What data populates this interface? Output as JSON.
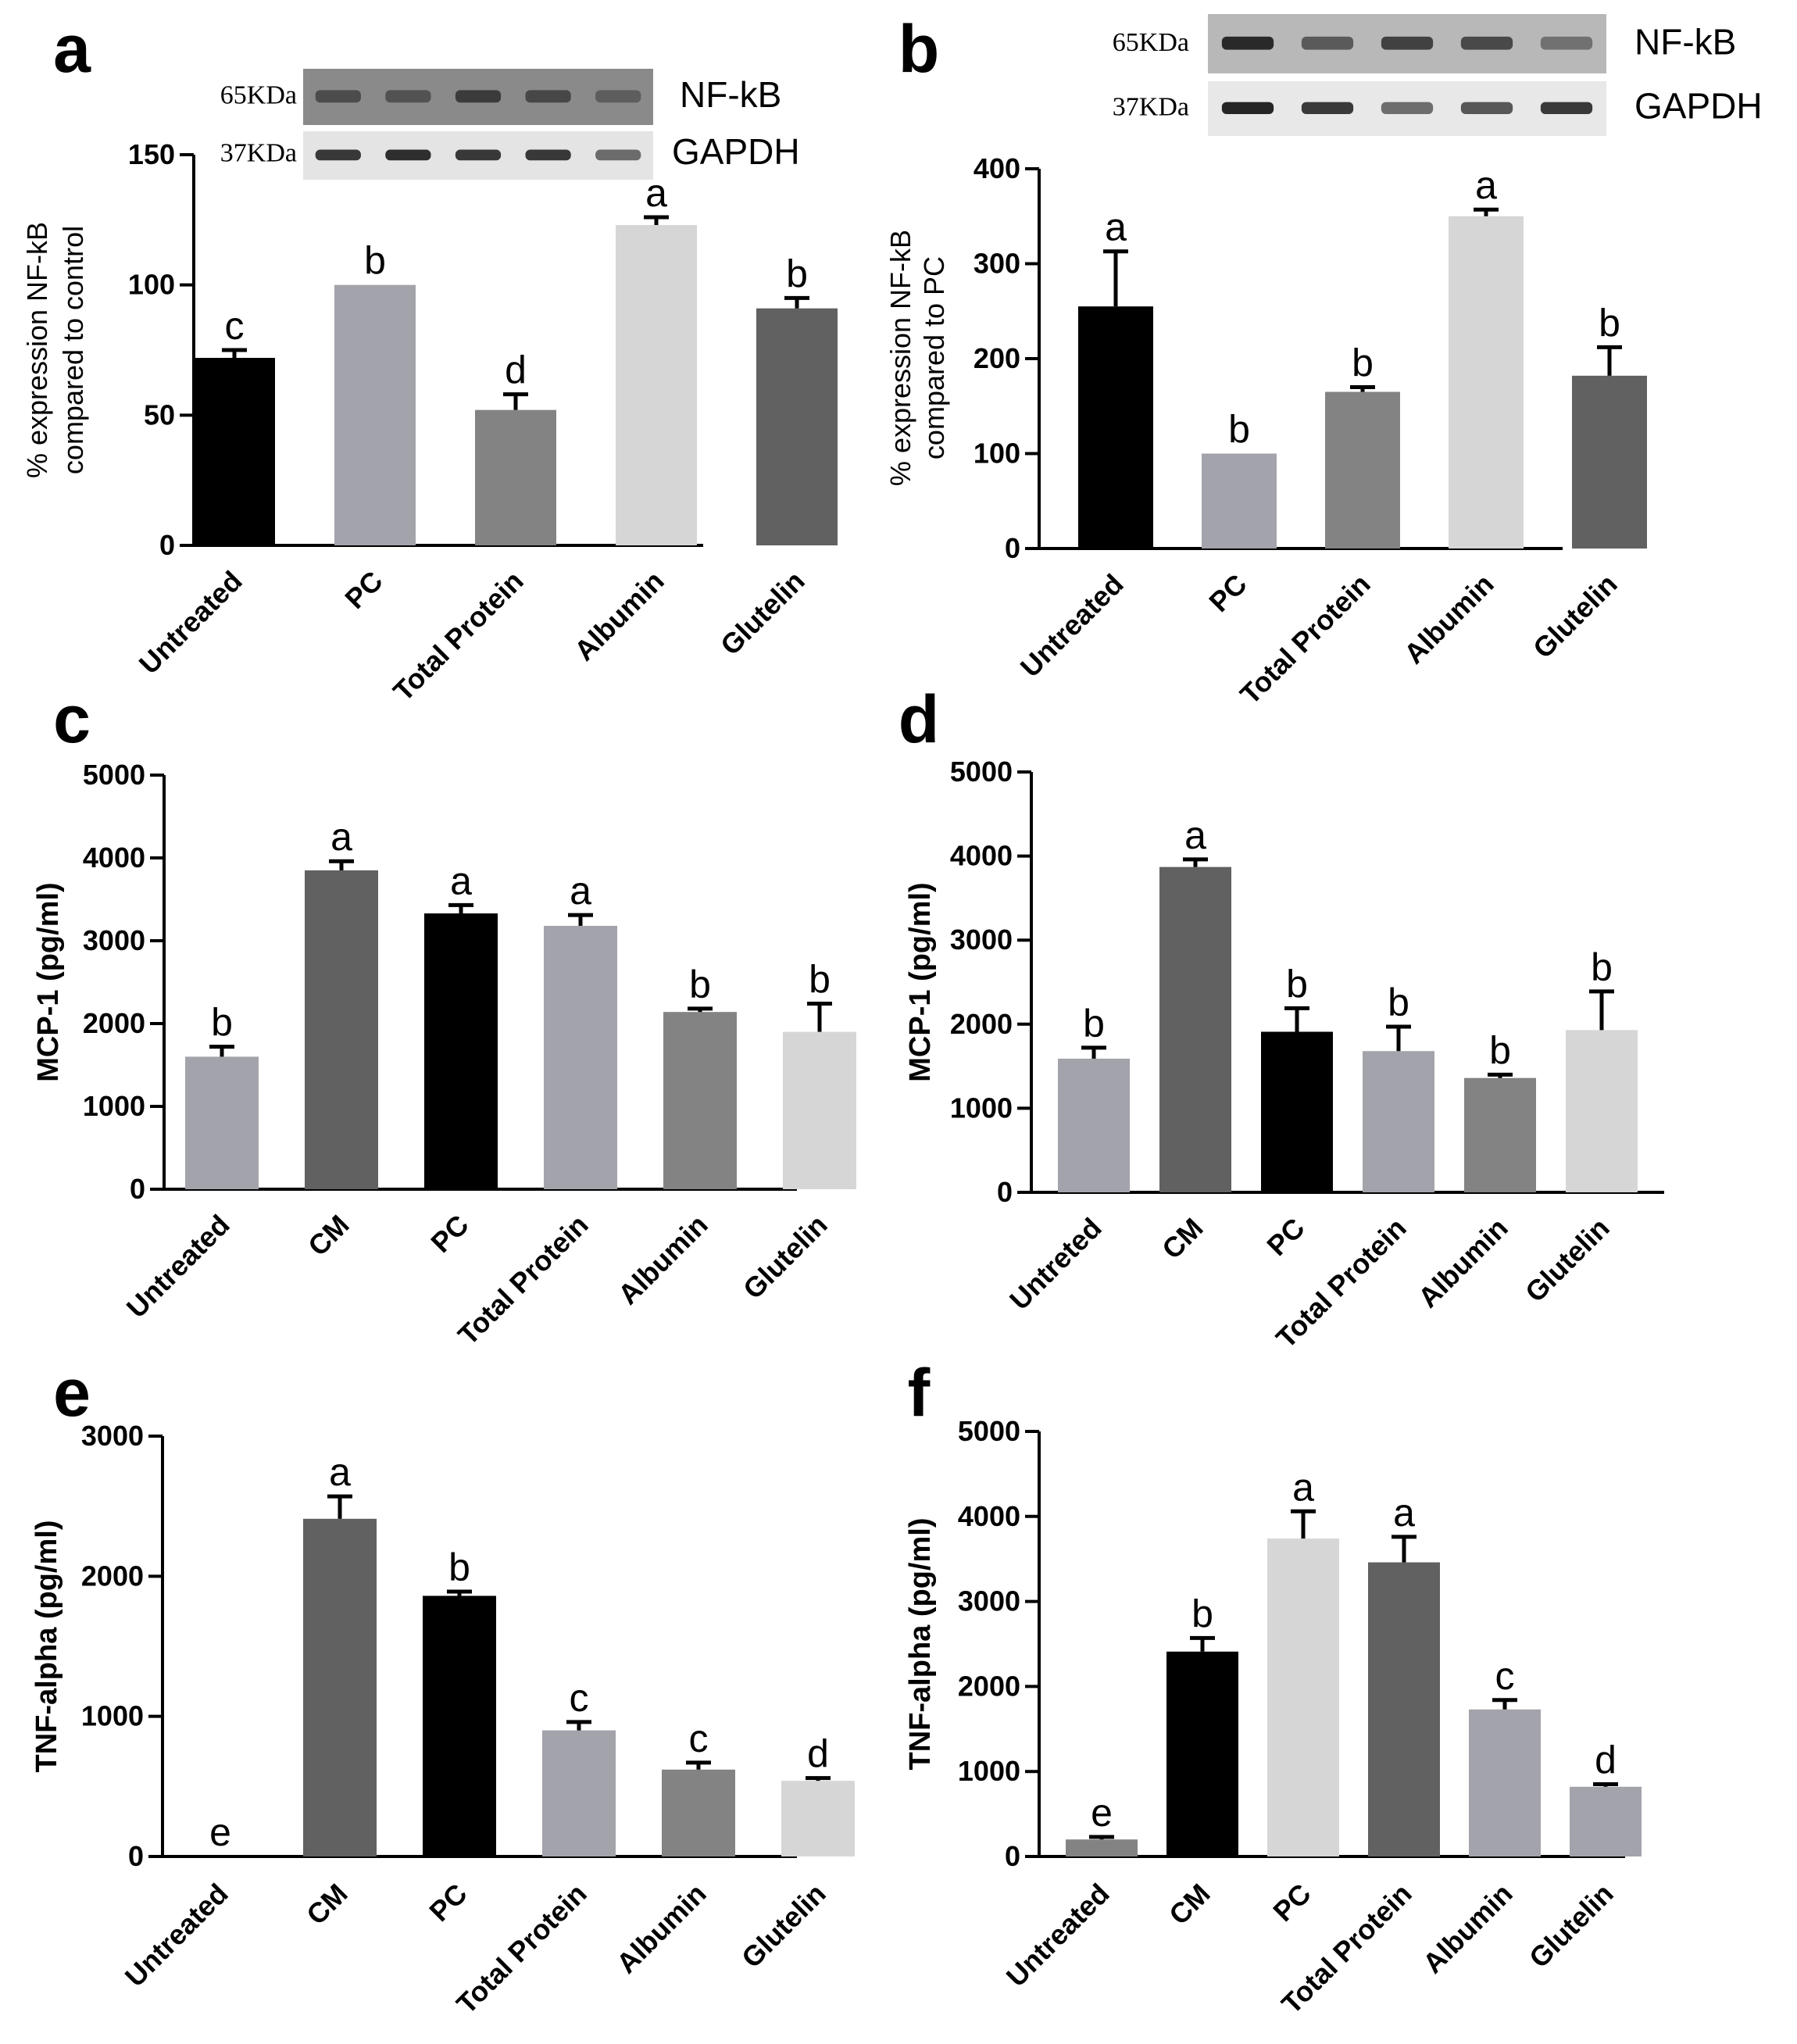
{
  "panels": [
    {
      "label": "a",
      "chart_data": {
        "type": "bar",
        "ylabel_lines": [
          "% expression NF-kB",
          "compared to control"
        ],
        "ylim": [
          0,
          150
        ],
        "yticks": [
          0,
          50,
          100,
          150
        ],
        "categories": [
          "Untreated",
          "PC",
          "Total Protein",
          "Albumin",
          "Glutelin"
        ],
        "values": [
          72,
          100,
          52,
          123,
          91
        ],
        "errors": [
          3,
          0,
          6,
          3,
          4
        ],
        "letters": [
          "c",
          "b",
          "d",
          "a",
          "b"
        ],
        "colors": [
          "#000000",
          "#a3a3ab",
          "#838383",
          "#d6d6d6",
          "#616161"
        ]
      },
      "blot": {
        "markers": [
          "65KDa",
          "37KDa"
        ],
        "proteins": [
          "NF-kB",
          "GAPDH"
        ]
      }
    },
    {
      "label": "b",
      "chart_data": {
        "type": "bar",
        "ylabel_lines": [
          "% expression NF-kB",
          "compared to PC"
        ],
        "ylim": [
          0,
          400
        ],
        "yticks": [
          0,
          100,
          200,
          300,
          400
        ],
        "categories": [
          "Untreated",
          "PC",
          "Total Protein",
          "Albumin",
          "Glutelin"
        ],
        "values": [
          255,
          100,
          165,
          350,
          182
        ],
        "errors": [
          58,
          0,
          5,
          7,
          30
        ],
        "letters": [
          "a",
          "b",
          "b",
          "a",
          "b"
        ],
        "colors": [
          "#000000",
          "#a3a3ab",
          "#838383",
          "#d6d6d6",
          "#616161"
        ]
      },
      "blot": {
        "markers": [
          "65KDa",
          "37KDa"
        ],
        "proteins": [
          "NF-kB",
          "GAPDH"
        ]
      }
    },
    {
      "label": "c",
      "chart_data": {
        "type": "bar",
        "ylabel_lines": [
          "MCP-1 (pg/ml)"
        ],
        "ylim": [
          0,
          5000
        ],
        "yticks": [
          0,
          1000,
          2000,
          3000,
          4000,
          5000
        ],
        "categories": [
          "Untreated",
          "CM",
          "PC",
          "Total Protein",
          "Albumin",
          "Glutelin"
        ],
        "values": [
          1600,
          3850,
          3330,
          3180,
          2140,
          1900
        ],
        "errors": [
          120,
          110,
          100,
          130,
          40,
          340
        ],
        "letters": [
          "b",
          "a",
          "a",
          "a",
          "b",
          "b"
        ],
        "colors": [
          "#a3a3ab",
          "#616161",
          "#000000",
          "#a3a3ab",
          "#838383",
          "#d6d6d6"
        ]
      }
    },
    {
      "label": "d",
      "chart_data": {
        "type": "bar",
        "ylabel_lines": [
          "MCP-1 (pg/ml)"
        ],
        "ylim": [
          0,
          5000
        ],
        "yticks": [
          0,
          1000,
          2000,
          3000,
          4000,
          5000
        ],
        "categories": [
          "Untreted",
          "CM",
          "PC",
          "Total Protein",
          "Albumin",
          "Glutelin"
        ],
        "values": [
          1590,
          3870,
          1910,
          1680,
          1360,
          1930
        ],
        "errors": [
          130,
          90,
          280,
          290,
          40,
          460
        ],
        "letters": [
          "b",
          "a",
          "b",
          "b",
          "b",
          "b"
        ],
        "colors": [
          "#a3a3ab",
          "#616161",
          "#000000",
          "#a3a3ab",
          "#838383",
          "#d6d6d6"
        ]
      }
    },
    {
      "label": "e",
      "chart_data": {
        "type": "bar",
        "ylabel_lines": [
          "TNF-alpha (pg/ml)"
        ],
        "ylim": [
          0,
          3000
        ],
        "yticks": [
          0,
          1000,
          2000,
          3000
        ],
        "categories": [
          "Untreated",
          "CM",
          "PC",
          "Total Protein",
          "Albumin",
          "Glutelin"
        ],
        "values": [
          0,
          2410,
          1860,
          900,
          620,
          540
        ],
        "errors": [
          0,
          160,
          30,
          60,
          50,
          20
        ],
        "letters": [
          "e",
          "a",
          "b",
          "c",
          "c",
          "d"
        ],
        "colors": [
          "#000000",
          "#616161",
          "#000000",
          "#a3a3ab",
          "#838383",
          "#d6d6d6"
        ]
      }
    },
    {
      "label": "f",
      "chart_data": {
        "type": "bar",
        "ylabel_lines": [
          "TNF-alpha (pg/ml)"
        ],
        "ylim": [
          0,
          5000
        ],
        "yticks": [
          0,
          1000,
          2000,
          3000,
          4000,
          5000
        ],
        "categories": [
          "Untreated",
          "CM",
          "PC",
          "Total Protein",
          "Albumin",
          "Glutelin"
        ],
        "values": [
          200,
          2410,
          3740,
          3460,
          1730,
          820
        ],
        "errors": [
          30,
          160,
          320,
          300,
          110,
          30
        ],
        "letters": [
          "e",
          "b",
          "a",
          "a",
          "c",
          "d"
        ],
        "colors": [
          "#838383",
          "#000000",
          "#d6d6d6",
          "#616161",
          "#a3a3ab",
          "#a3a3ab"
        ]
      }
    }
  ]
}
